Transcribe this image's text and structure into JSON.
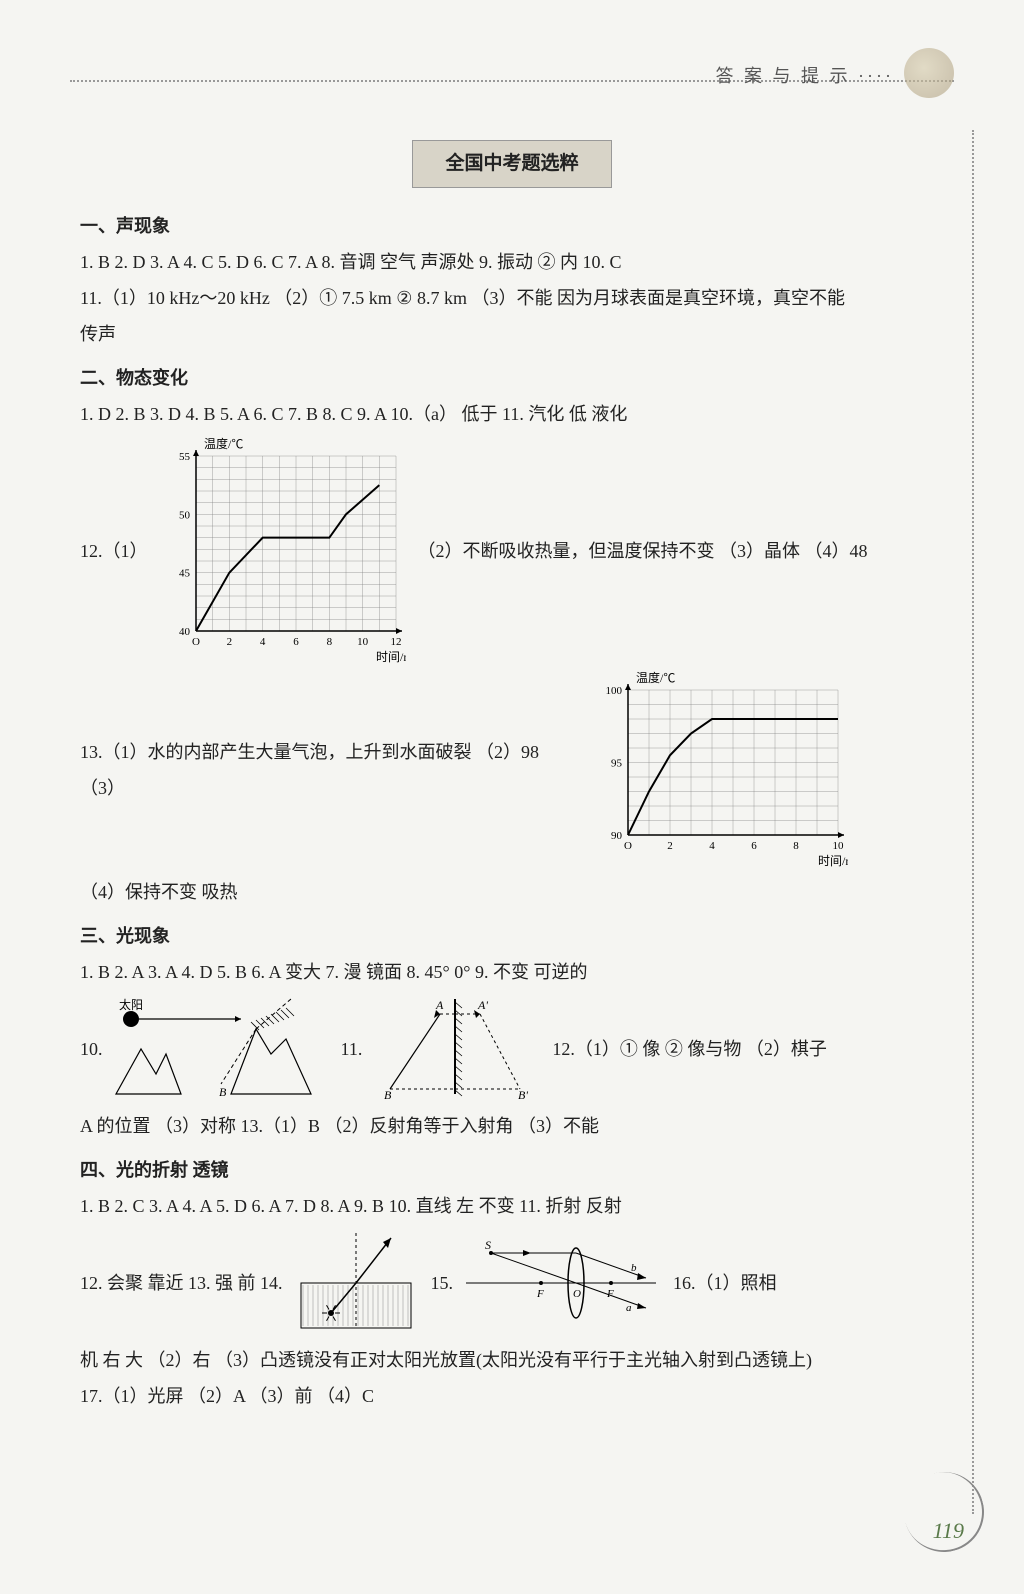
{
  "header": {
    "tag": "答 案 与 提 示 ····"
  },
  "title": "全国中考题选粹",
  "sec1": {
    "head": "一、声现象",
    "l1": "1. B  2. D  3. A  4. C  5. D  6. C  7. A  8. 音调  空气  声源处  9. 振动  ②  内  10. C",
    "l2": "11.（1）10 kHz～20 kHz （2）① 7.5 km  ② 8.7 km （3）不能  因为月球表面是真空环境，真空不能",
    "l3": "传声"
  },
  "sec2": {
    "head": "二、物态变化",
    "l1": "1. D  2. B  3. D  4. B  5. A  6. C  7. B  8. C  9. A  10.（a） 低于  11. 汽化  低  液化",
    "q12_label": "12.（1）",
    "q12_after": "（2）不断吸收热量，但温度保持不变 （3）晶体 （4）48",
    "chart1": {
      "xlabel": "时间/min",
      "ylabel": "温度/℃",
      "xlim": [
        0,
        12
      ],
      "xtick_step": 2,
      "ylim": [
        40,
        55
      ],
      "ytick_step": 5,
      "bg": "#f5f5f2",
      "grid_color": "#888888",
      "axis_color": "#000000",
      "line_color": "#000000",
      "points": [
        [
          0,
          40
        ],
        [
          2,
          45
        ],
        [
          4,
          48
        ],
        [
          5,
          48
        ],
        [
          6,
          48
        ],
        [
          8,
          48
        ],
        [
          9,
          50
        ],
        [
          11,
          52.5
        ]
      ]
    },
    "q13_label": "13.（1）水的内部产生大量气泡，上升到水面破裂 （2）98 （3）",
    "chart2": {
      "xlabel": "时间/min",
      "ylabel": "温度/℃",
      "xlim": [
        0,
        10
      ],
      "xtick_step": 2,
      "ylim": [
        90,
        100
      ],
      "ytick_step": 5,
      "bg": "#f5f5f2",
      "grid_color": "#888888",
      "axis_color": "#000000",
      "line_color": "#000000",
      "points": [
        [
          0,
          90
        ],
        [
          1,
          93
        ],
        [
          2,
          95.5
        ],
        [
          3,
          97
        ],
        [
          4,
          98
        ],
        [
          6,
          98
        ],
        [
          8,
          98
        ],
        [
          10,
          98
        ]
      ]
    },
    "q13_l2": "（4）保持不变  吸热"
  },
  "sec3": {
    "head": "三、光现象",
    "l1": "1. B  2. A  3. A  4. D  5. B  6. A  变大  7. 漫  镜面  8. 45°  0°  9. 不变  可逆的",
    "q10_label": "10.",
    "diag10": {
      "sun_label": "太阳",
      "label_B": "B"
    },
    "q11_label": "11.",
    "diag11": {
      "A": "A",
      "Ap": "A'",
      "B": "B",
      "Bp": "B'"
    },
    "q12": "12.（1）① 像  ② 像与物 （2）棋子",
    "l2": "A 的位置 （3）对称  13.（1）B （2）反射角等于入射角 （3）不能"
  },
  "sec4": {
    "head": "四、光的折射  透镜",
    "l1": "1. B  2. C  3. A  4. A  5. D  6. A  7. D  8. A  9. B  10. 直线  左  不变  11. 折射  反射",
    "q12": "12. 会聚  靠近  13. 强  前  14.",
    "q15": "15.",
    "diag15": {
      "S": "S",
      "F": "F",
      "O": "O",
      "a": "a",
      "b": "b"
    },
    "q16": "16.（1）照相",
    "l2": "机  右  大 （2）右 （3）凸透镜没有正对太阳光放置(太阳光没有平行于主光轴入射到凸透镜上)",
    "l3": "17.（1）光屏 （2）A （3）前 （4）C"
  },
  "pagenum": "119"
}
